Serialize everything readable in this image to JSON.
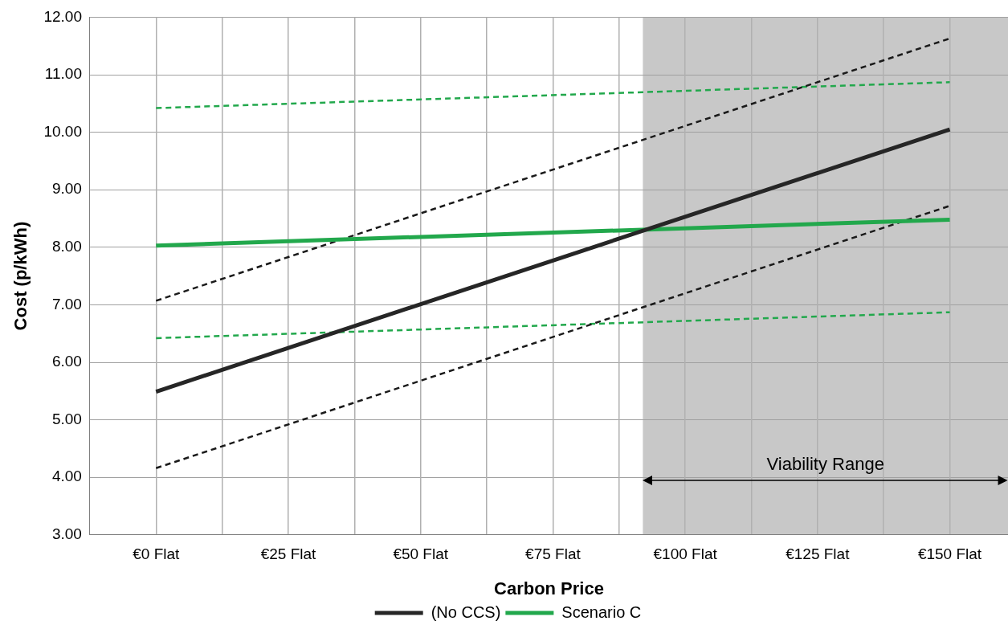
{
  "chart_data": {
    "type": "line",
    "xlabel": "Carbon Price",
    "ylabel": "Cost (p/kWh)",
    "x": [
      0,
      150
    ],
    "xlim": [
      -12.5,
      161
    ],
    "xticks": [
      {
        "value": 0,
        "label": "€0 Flat"
      },
      {
        "value": 12.5,
        "label": null
      },
      {
        "value": 25,
        "label": "€25 Flat"
      },
      {
        "value": 37.5,
        "label": null
      },
      {
        "value": 50,
        "label": "€50 Flat"
      },
      {
        "value": 62.5,
        "label": null
      },
      {
        "value": 75,
        "label": "€75 Flat"
      },
      {
        "value": 87.5,
        "label": null
      },
      {
        "value": 100,
        "label": "€100 Flat"
      },
      {
        "value": 112.5,
        "label": null
      },
      {
        "value": 125,
        "label": "€125 Flat"
      },
      {
        "value": 137.5,
        "label": null
      },
      {
        "value": 150,
        "label": "€150 Flat"
      }
    ],
    "ylim": [
      3,
      12
    ],
    "yticks": [
      {
        "value": 3,
        "label": "3.00"
      },
      {
        "value": 4,
        "label": "4.00"
      },
      {
        "value": 5,
        "label": "5.00"
      },
      {
        "value": 6,
        "label": "6.00"
      },
      {
        "value": 7,
        "label": "7.00"
      },
      {
        "value": 8,
        "label": "8.00"
      },
      {
        "value": 9,
        "label": "9.00"
      },
      {
        "value": 10,
        "label": "10.00"
      },
      {
        "value": 11,
        "label": "11.00"
      },
      {
        "value": 12,
        "label": "12.00"
      }
    ],
    "grid": true,
    "legend": "bottom",
    "marker": "none",
    "bands": [
      {
        "axis": "x",
        "from": 92,
        "to": 161,
        "label": "Viability Range",
        "color": "#c8c8c8"
      }
    ],
    "series": [
      {
        "color": "#1a1a1a",
        "line_style": "dashed",
        "values": [
          7.07,
          11.63
        ]
      },
      {
        "color": "#1a1a1a",
        "line_style": "dashed",
        "values": [
          4.16,
          8.72
        ]
      },
      {
        "color": "#22a84c",
        "line_style": "dashed",
        "values": [
          10.42,
          10.87
        ]
      },
      {
        "color": "#22a84c",
        "line_style": "dashed",
        "values": [
          6.42,
          6.87
        ]
      },
      {
        "name": "(No CCS)",
        "color": "#262626",
        "line_style": "solid",
        "values": [
          5.49,
          10.05
        ]
      },
      {
        "name": "Scenario C",
        "color": "#22a84c",
        "line_style": "solid",
        "values": [
          8.03,
          8.48
        ]
      }
    ]
  }
}
